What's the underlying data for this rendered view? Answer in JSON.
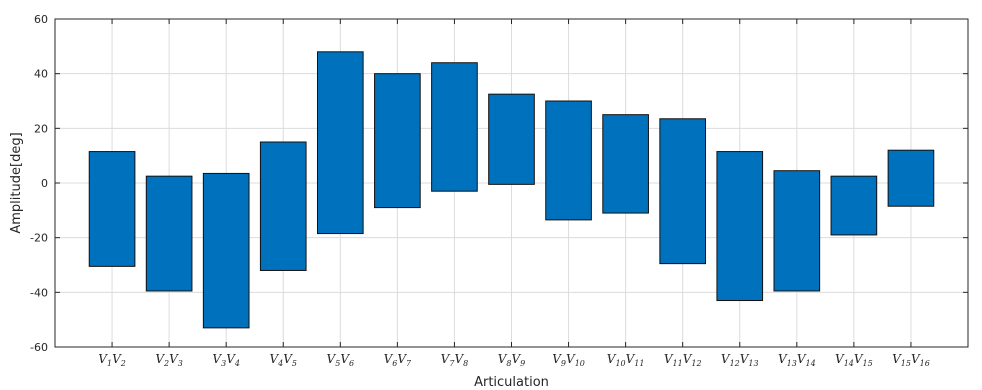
{
  "chart_data": {
    "type": "bar",
    "title": "",
    "xlabel": "Articulation",
    "ylabel": "Amplitude[deg]",
    "ylim": [
      -60,
      60
    ],
    "yticks": [
      -60,
      -40,
      -20,
      0,
      20,
      40,
      60
    ],
    "grid": true,
    "bar_color": "#0072BD",
    "categories": [
      {
        "base": "V",
        "sub": "1",
        "base2": "V",
        "sub2": "2"
      },
      {
        "base": "V",
        "sub": "2",
        "base2": "V",
        "sub2": "3"
      },
      {
        "base": "V",
        "sub": "3",
        "base2": "V",
        "sub2": "4"
      },
      {
        "base": "V",
        "sub": "4",
        "base2": "V",
        "sub2": "5"
      },
      {
        "base": "V",
        "sub": "5",
        "base2": "V",
        "sub2": "6"
      },
      {
        "base": "V",
        "sub": "6",
        "base2": "V",
        "sub2": "7"
      },
      {
        "base": "V",
        "sub": "7",
        "base2": "V",
        "sub2": "8"
      },
      {
        "base": "V",
        "sub": "8",
        "base2": "V",
        "sub2": "9"
      },
      {
        "base": "V",
        "sub": "9",
        "base2": "V",
        "sub2": "10"
      },
      {
        "base": "V",
        "sub": "10",
        "base2": "V",
        "sub2": "11"
      },
      {
        "base": "V",
        "sub": "11",
        "base2": "V",
        "sub2": "12"
      },
      {
        "base": "V",
        "sub": "12",
        "base2": "V",
        "sub2": "13"
      },
      {
        "base": "V",
        "sub": "13",
        "base2": "V",
        "sub2": "14"
      },
      {
        "base": "V",
        "sub": "14",
        "base2": "V",
        "sub2": "15"
      },
      {
        "base": "V",
        "sub": "15",
        "base2": "V",
        "sub2": "16"
      }
    ],
    "ranges": [
      [
        -30.5,
        11.5
      ],
      [
        -39.5,
        2.5
      ],
      [
        -53,
        3.5
      ],
      [
        -32,
        15
      ],
      [
        -18.5,
        48
      ],
      [
        -9,
        40
      ],
      [
        -3,
        44
      ],
      [
        -0.5,
        32.5
      ],
      [
        -13.5,
        30
      ],
      [
        -11,
        25
      ],
      [
        -29.5,
        23.5
      ],
      [
        -43,
        11.5
      ],
      [
        -39.5,
        4.5
      ],
      [
        -19,
        2.5
      ],
      [
        -8.5,
        12
      ]
    ]
  }
}
